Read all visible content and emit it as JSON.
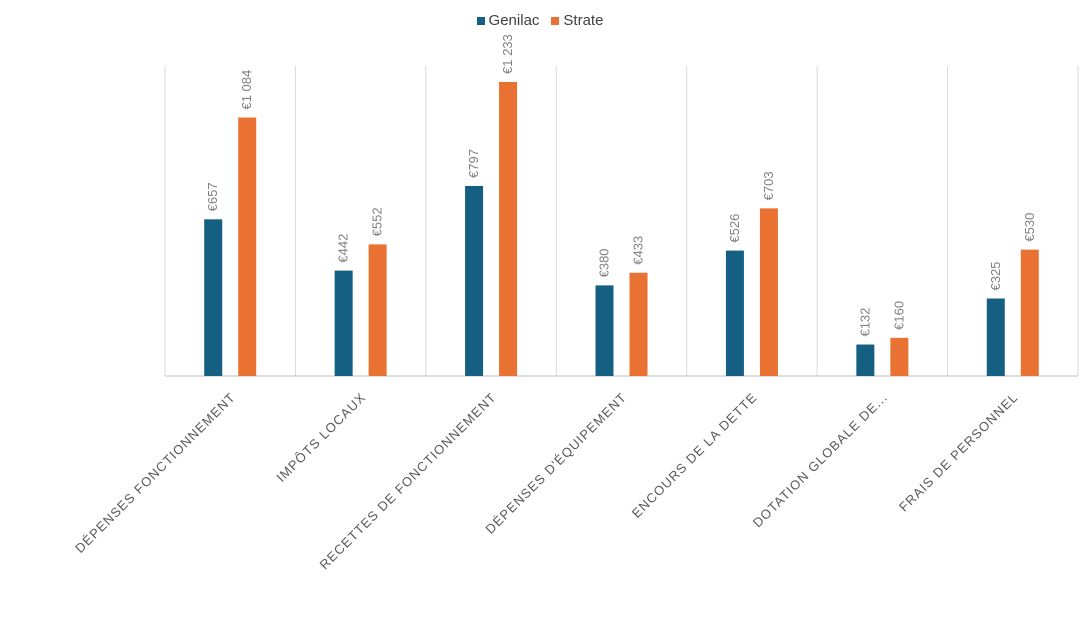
{
  "chart_data": {
    "type": "bar",
    "title": "",
    "xlabel": "",
    "ylabel": "",
    "ylim": [
      0,
      1300
    ],
    "grid": "vertical-category-separators",
    "legend_position": "top",
    "categories": [
      "DÉPENSES FONCTIONNEMENT",
      "IMPÔTS LOCAUX",
      "RECETTES DE FONCTIONNEMENT",
      "DÉPENSES D'ÉQUIPEMENT",
      "ENCOURS DE LA DETTE",
      "DOTATION GLOBALE DE...",
      "FRAIS DE PERSONNEL"
    ],
    "series": [
      {
        "name": "Genilac",
        "color": "#156082",
        "values": [
          657,
          442,
          797,
          380,
          526,
          132,
          325
        ],
        "labels": [
          "€657",
          "€442",
          "€797",
          "€380",
          "€526",
          "€132",
          "€325"
        ]
      },
      {
        "name": "Strate",
        "color": "#E97132",
        "values": [
          1084,
          552,
          1233,
          433,
          703,
          160,
          530
        ],
        "labels": [
          "€1 084",
          "€552",
          "€1 233",
          "€433",
          "€703",
          "€160",
          "€530"
        ]
      }
    ]
  }
}
